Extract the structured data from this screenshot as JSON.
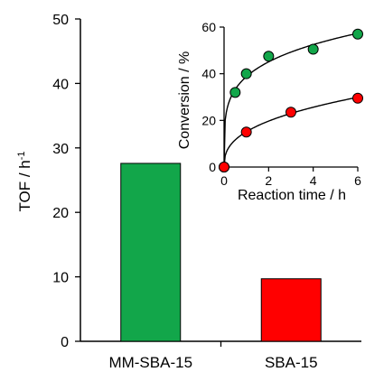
{
  "chart_data": [
    {
      "type": "bar",
      "categories": [
        "MM-SBA-15",
        "SBA-15"
      ],
      "values": [
        27.6,
        9.7
      ],
      "colors": [
        "#12a64a",
        "#ff0000"
      ],
      "ylabel_base": "TOF / h",
      "ylabel_sup": "-1",
      "xlabel": "",
      "ylim": [
        0,
        50
      ],
      "yticks": [
        0,
        10,
        20,
        30,
        40,
        50
      ],
      "grid": false
    },
    {
      "type": "scatter",
      "subtype": "inset",
      "xlabel": "Reaction time / h",
      "ylabel": "Conversion / %",
      "xlim": [
        0,
        6
      ],
      "ylim": [
        0,
        60
      ],
      "xticks": [
        0,
        2,
        4,
        6
      ],
      "yticks": [
        0,
        20,
        40,
        60
      ],
      "grid": false,
      "series": [
        {
          "color": "#12a64a",
          "x": [
            0,
            0.5,
            1,
            2,
            4,
            6
          ],
          "y": [
            0,
            32,
            40,
            47.5,
            50.5,
            57
          ],
          "fit": "curve"
        },
        {
          "color": "#ff0000",
          "x": [
            0,
            1,
            3,
            6
          ],
          "y": [
            0,
            15,
            23.5,
            29.5
          ],
          "fit": "curve"
        }
      ]
    }
  ]
}
